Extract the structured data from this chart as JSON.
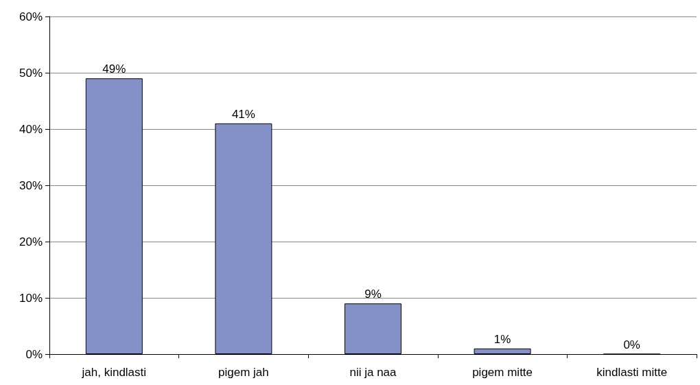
{
  "chart_data": {
    "type": "bar",
    "categories": [
      "jah, kindlasti",
      "pigem jah",
      "nii ja naa",
      "pigem mitte",
      "kindlasti mitte"
    ],
    "values": [
      49,
      41,
      9,
      1,
      0
    ],
    "value_labels": [
      "49%",
      "41%",
      "9%",
      "1%",
      "0%"
    ],
    "color": "#8490c8",
    "ylim": [
      0,
      60
    ],
    "yticks": [
      {
        "value": 0,
        "label": "0%"
      },
      {
        "value": 10,
        "label": "10%"
      },
      {
        "value": 20,
        "label": "20%"
      },
      {
        "value": 30,
        "label": "30%"
      },
      {
        "value": 40,
        "label": "40%"
      },
      {
        "value": 50,
        "label": "50%"
      },
      {
        "value": 60,
        "label": "60%"
      }
    ],
    "grid": "y"
  }
}
